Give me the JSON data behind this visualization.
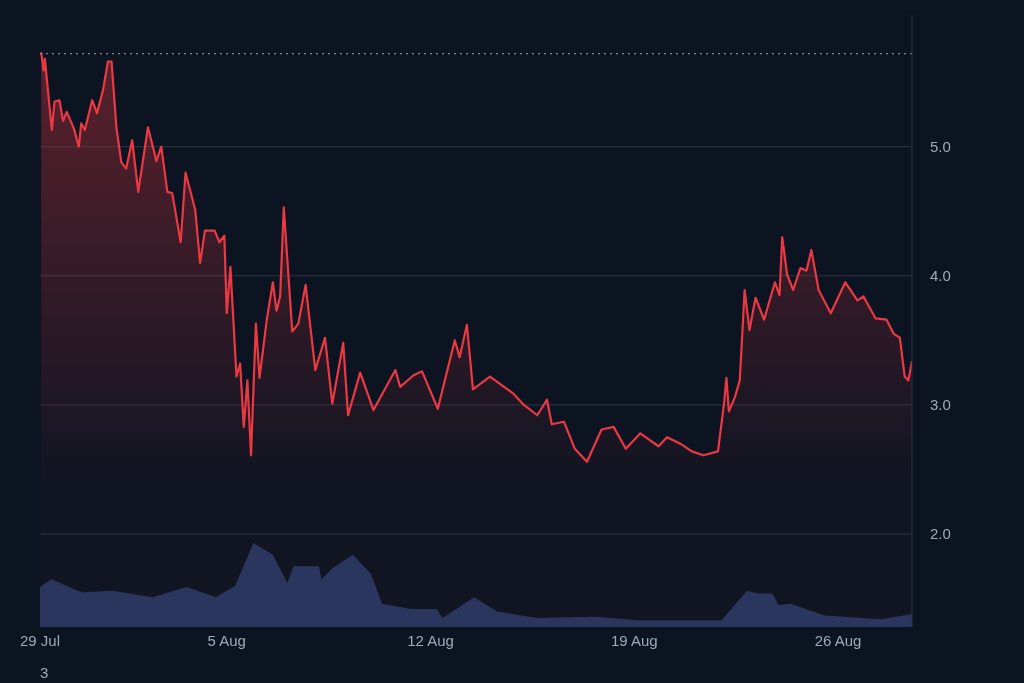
{
  "chart_data": {
    "type": "area",
    "x": [
      "--07-29T15:00",
      "--07-29T17:00",
      "--07-29T18:00",
      "--07-29T23:45",
      "--07-30T02:00",
      "--07-30T06:00",
      "--07-30T09:00",
      "--07-30T12:00",
      "--07-30T18:00",
      "--07-30T22:00",
      "--07-31T00:00",
      "--07-31T03:00",
      "--07-31T09:00",
      "--07-31T13:00",
      "--07-31T18:00",
      "--07-31T22:00",
      "--08-01T01:00",
      "--08-01T05:00",
      "--08-01T09:00",
      "--08-01T13:00",
      "--08-01T18:00",
      "--08-01T23:00",
      "--08-02T07:00",
      "--08-02T14:00",
      "--08-02T18:00",
      "--08-02T23:00",
      "--08-03T03:00",
      "--08-03T10:00",
      "--08-03T14:00",
      "--08-03T22:00",
      "--08-04T02:00",
      "--08-04T06:00",
      "--08-04T14:00",
      "--08-04T18:00",
      "--08-04T22:00",
      "--08-05T00:00",
      "--08-05T03:00",
      "--08-05T08:00",
      "--08-05T11:00",
      "--08-05T14:00",
      "--08-05T17:00",
      "--08-05T20:00",
      "--08-06T00:00",
      "--08-06T03:00",
      "--08-06T09:00",
      "--08-06T14:00",
      "--08-06T17:00",
      "--08-06T20:00",
      "--08-06T23:00",
      "--08-07T06:00",
      "--08-07T11:00",
      "--08-07T17:00",
      "--08-08T01:00",
      "--08-08T09:00",
      "--08-08T15:00",
      "--08-09T00:00",
      "--08-09T04:00",
      "--08-09T14:00",
      "--08-10T01:00",
      "--08-10T19:00",
      "--08-10T23:00",
      "--08-11T10:00",
      "--08-11T17:00",
      "--08-12T06:00",
      "--08-12T20:00",
      "--08-13T00:00",
      "--08-13T06:00",
      "--08-13T11:00",
      "--08-14T01:00",
      "--08-14T20:00",
      "--08-15T05:00",
      "--08-15T16:00",
      "--08-16T00:00",
      "--08-16T04:00",
      "--08-16T14:00",
      "--08-16T23:00",
      "--08-17T09:00",
      "--08-17T21:00",
      "--08-18T07:00",
      "--08-18T17:00",
      "--08-19T05:00",
      "--08-19T20:00",
      "--08-20T03:00",
      "--08-20T14:00",
      "--08-20T23:30",
      "--08-21T09:00",
      "--08-21T21:00",
      "--08-22T02:00",
      "--08-22T04:00",
      "--08-22T06:00",
      "--08-22T11:00",
      "--08-22T15:00",
      "--08-22T19:00",
      "--08-22T23:00",
      "--08-23T04:00",
      "--08-23T11:00",
      "--08-23T20:00",
      "--08-23T23:45",
      "--08-24T02:00",
      "--08-24T06:00",
      "--08-24T11:00",
      "--08-24T17:00",
      "--08-24T22:00",
      "--08-25T02:00",
      "--08-25T08:00",
      "--08-25T18:00",
      "--08-26T06:00",
      "--08-26T16:00",
      "--08-26T21:00",
      "--08-27T07:00",
      "--08-27T16:00",
      "--08-27T22:00",
      "--08-28T03:00",
      "--08-28T07:00",
      "--08-28T10:00",
      "--08-28T13:00"
    ],
    "series": [
      {
        "color": "#ea3943",
        "values": [
          5.73,
          5.59,
          5.68,
          5.13,
          5.35,
          5.36,
          5.2,
          5.27,
          5.14,
          5.0,
          5.18,
          5.13,
          5.36,
          5.26,
          5.44,
          5.66,
          5.66,
          5.15,
          4.88,
          4.83,
          5.05,
          4.65,
          5.15,
          4.89,
          5.0,
          4.65,
          4.64,
          4.26,
          4.8,
          4.51,
          4.1,
          4.35,
          4.35,
          4.26,
          4.31,
          3.71,
          4.07,
          3.22,
          3.32,
          2.83,
          3.19,
          2.61,
          3.63,
          3.21,
          3.66,
          3.95,
          3.73,
          3.84,
          4.53,
          3.57,
          3.63,
          3.93,
          3.27,
          3.52,
          3.01,
          3.48,
          2.92,
          3.25,
          2.96,
          3.27,
          3.14,
          3.23,
          3.26,
          2.97,
          3.5,
          3.37,
          3.62,
          3.12,
          3.22,
          3.09,
          3.0,
          2.92,
          3.04,
          2.85,
          2.87,
          2.66,
          2.56,
          2.81,
          2.83,
          2.66,
          2.78,
          2.68,
          2.75,
          2.7,
          2.64,
          2.61,
          2.64,
          3.01,
          3.21,
          2.95,
          3.06,
          3.19,
          3.89,
          3.58,
          3.83,
          3.66,
          3.95,
          3.85,
          4.3,
          4.01,
          3.89,
          4.06,
          4.04,
          4.2,
          3.89,
          3.71,
          3.95,
          3.81,
          3.84,
          3.67,
          3.66,
          3.55,
          3.52,
          3.22,
          3.19,
          3.34
        ]
      },
      {
        "color": "#2f3a66",
        "x": [
          "--07-29T14:00",
          "--07-29T23:30",
          "--07-30T21:00",
          "--07-31T02:00",
          "--08-01T01:30",
          "--08-02T11:00",
          "--08-03T15:00",
          "--08-04T15:00",
          "--08-05T07:00",
          "--08-05T22:00",
          "--08-06T14:00",
          "--08-07T02:00",
          "--08-07T07:00",
          "--08-08T04:00",
          "--08-08T06:00",
          "--08-08T16:00",
          "--08-09T08:00",
          "--08-09T23:00",
          "--08-10T08:00",
          "--08-11T08:00",
          "--08-12T05:00",
          "--08-12T10:00",
          "--08-13T12:00",
          "--08-14T07:00",
          "--08-15T16:00",
          "--08-17T16:00",
          "--08-19T06:00",
          "--08-21T23:45",
          "--08-22T21:00",
          "--08-23T06:00",
          "--08-23T18:00",
          "--08-23T23:00",
          "--08-24T09:00",
          "--08-25T13:00",
          "--08-27T12:00",
          "--08-28T13:00"
        ],
        "values": [
          1.59,
          1.65,
          1.56,
          1.55,
          1.56,
          1.51,
          1.59,
          1.51,
          1.6,
          1.93,
          1.84,
          1.62,
          1.75,
          1.75,
          1.65,
          1.74,
          1.84,
          1.69,
          1.46,
          1.42,
          1.42,
          1.35,
          1.51,
          1.4,
          1.35,
          1.36,
          1.33,
          1.33,
          1.56,
          1.54,
          1.54,
          1.45,
          1.46,
          1.37,
          1.34,
          1.38
        ]
      }
    ],
    "xlim": [
      "--07-29T14:00",
      "--08-28T13:00"
    ],
    "xticks": [
      {
        "value": "--07-29T14:00",
        "label": "29 Jul"
      },
      {
        "value": "--08-05",
        "label": "5 Aug"
      },
      {
        "value": "--08-12",
        "label": "12 Aug"
      },
      {
        "value": "--08-19",
        "label": "19 Aug"
      },
      {
        "value": "--08-26",
        "label": "26 Aug"
      }
    ],
    "ylim": [
      1.28,
      6.02
    ],
    "yticks": [
      {
        "value": 2,
        "label": "2.0"
      },
      {
        "value": 3,
        "label": "3.0"
      },
      {
        "value": 4,
        "label": "4.0"
      },
      {
        "value": 5,
        "label": "5.0"
      }
    ],
    "grid": "y",
    "ref_lines": [
      {
        "axis": "y",
        "value": 5.72,
        "color": "#9aa0b0",
        "line_style": "dotted"
      }
    ],
    "annotations": [
      "3"
    ]
  }
}
